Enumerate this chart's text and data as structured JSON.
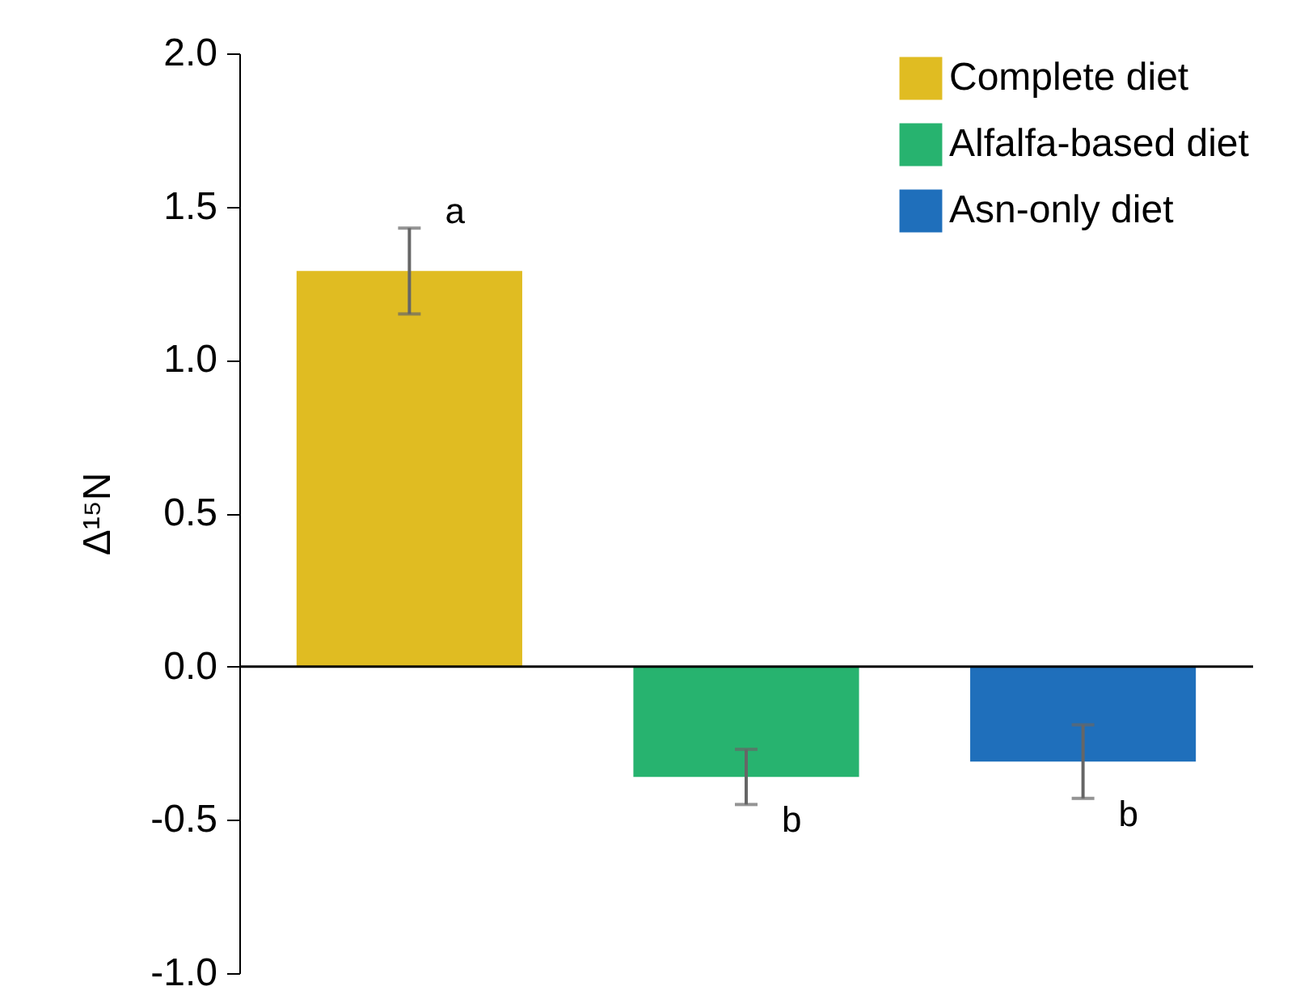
{
  "chart_data": {
    "type": "bar",
    "ylabel": "Δ¹⁵N",
    "categories": [
      null,
      null,
      null
    ],
    "series": [
      {
        "name": "Complete diet",
        "color": "#e0bc22",
        "values": [
          1.29,
          null,
          null
        ],
        "errors": [
          0.14,
          null,
          null
        ],
        "value_labels": [
          "a",
          null,
          null
        ]
      },
      {
        "name": "Alfalfa-based diet",
        "color": "#27b36f",
        "values": [
          null,
          -0.36,
          null
        ],
        "errors": [
          null,
          0.09,
          null
        ],
        "value_labels": [
          null,
          "b",
          null
        ]
      },
      {
        "name": "Asn-only diet",
        "color": "#1f6fbb",
        "values": [
          null,
          null,
          -0.31
        ],
        "errors": [
          null,
          null,
          0.12
        ],
        "value_labels": [
          null,
          null,
          "b"
        ]
      }
    ],
    "ylim": [
      -1,
      2
    ],
    "yticks": [
      {
        "value": -1,
        "label": "-1.0"
      },
      {
        "value": -0.5,
        "label": "-0.5"
      },
      {
        "value": 0,
        "label": "0.0"
      },
      {
        "value": 0.5,
        "label": "0.5"
      },
      {
        "value": 1,
        "label": "1.0"
      },
      {
        "value": 1.5,
        "label": "1.5"
      },
      {
        "value": 2,
        "label": "2.0"
      }
    ],
    "legend": "top right"
  }
}
